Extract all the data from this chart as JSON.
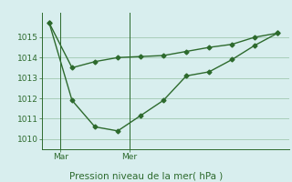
{
  "line1_x": [
    0,
    1,
    2,
    3,
    4,
    5,
    6,
    7,
    8,
    9,
    10
  ],
  "line1_y": [
    1015.7,
    1013.5,
    1013.8,
    1014.0,
    1014.05,
    1014.1,
    1014.3,
    1014.5,
    1014.65,
    1015.0,
    1015.2
  ],
  "line2_x": [
    0,
    1,
    2,
    3,
    4,
    5,
    6,
    7,
    8,
    9,
    10
  ],
  "line2_y": [
    1015.7,
    1011.9,
    1010.6,
    1010.4,
    1011.15,
    1011.9,
    1013.1,
    1013.3,
    1013.9,
    1014.6,
    1015.2
  ],
  "line_color": "#2d6a2d",
  "bg_color": "#d8eeee",
  "grid_color": "#a0c8b0",
  "yticks": [
    1010,
    1011,
    1012,
    1013,
    1014,
    1015
  ],
  "ylim": [
    1009.5,
    1016.2
  ],
  "xlim": [
    -0.3,
    10.5
  ],
  "xlabel": "Pression niveau de la mer( hPa )",
  "vline1_x": 0.5,
  "vline2_x": 3.5,
  "xtick_labels": [
    "Mar",
    "Mer"
  ],
  "xtick_positions": [
    0.5,
    3.5
  ],
  "marker": "D",
  "markersize": 2.5,
  "linewidth": 1.0,
  "xlabel_fontsize": 7.5,
  "ytick_fontsize": 6.5,
  "xtick_fontsize": 6.5
}
